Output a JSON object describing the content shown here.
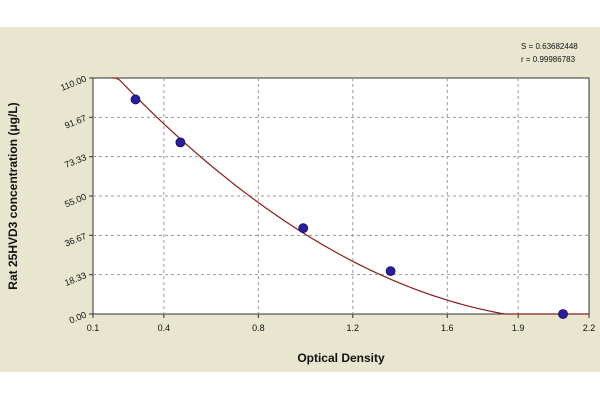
{
  "chart_data": {
    "type": "scatter",
    "xlabel": "Optical Density",
    "ylabel": "Rat 25HVD3 concentration (μg/L)",
    "x_ticks": [
      "0.1",
      "0.4",
      "0.8",
      "1.2",
      "1.6",
      "1.9",
      "2.2"
    ],
    "x_tick_values": [
      0.1,
      0.4,
      0.8,
      1.2,
      1.6,
      1.9,
      2.2
    ],
    "y_ticks": [
      "0.00",
      "18.33",
      "36.67",
      "55.00",
      "73.33",
      "91.67",
      "110.00"
    ],
    "y_tick_values": [
      0,
      18.33,
      36.67,
      55.0,
      73.33,
      91.67,
      110.0
    ],
    "xlim": [
      0.1,
      2.2
    ],
    "ylim": [
      0,
      110
    ],
    "grid": true,
    "series": [
      {
        "points": [
          {
            "x": 0.28,
            "y": 100
          },
          {
            "x": 0.47,
            "y": 80
          },
          {
            "x": 0.99,
            "y": 40
          },
          {
            "x": 1.36,
            "y": 20
          },
          {
            "x": 2.09,
            "y": 0
          }
        ],
        "color": "#2a1e9a"
      }
    ],
    "fit_curve": {
      "type": "quadratic",
      "color": "#8b1a1a",
      "x_range": [
        0.18,
        2.2
      ],
      "coefficients": [
        134.68,
        -126.67,
        29.08
      ]
    },
    "stats": [
      "S = 0.63682448",
      "r = 0.99986783"
    ]
  }
}
